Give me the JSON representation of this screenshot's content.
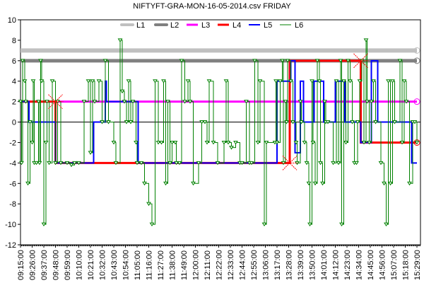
{
  "chart_data": {
    "type": "line",
    "title": "NIFTYFT-GRA-MON-16-05-2014.csv  FRIDAY",
    "xlabel": "",
    "ylabel": "",
    "x_unit": "minutes since 09:15",
    "xlim": [
      0,
      377
    ],
    "ylim": [
      -12,
      10
    ],
    "yticks": [
      -12,
      -10,
      -8,
      -6,
      -4,
      -2,
      0,
      2,
      4,
      6,
      8,
      10
    ],
    "xtick_labels": [
      "09:15:00",
      "09:26:00",
      "09:37:00",
      "09:48:00",
      "09:59:00",
      "10:10:00",
      "10:21:00",
      "10:32:00",
      "10:43:00",
      "10:54:00",
      "11:05:00",
      "11:16:00",
      "11:27:00",
      "11:38:00",
      "11:49:00",
      "12:00:00",
      "12:11:00",
      "12:22:00",
      "12:33:00",
      "12:44:00",
      "12:55:00",
      "13:06:00",
      "13:17:00",
      "13:28:00",
      "13:39:00",
      "13:50:00",
      "14:01:00",
      "14:12:00",
      "14:23:00",
      "14:34:00",
      "14:45:00",
      "14:56:00",
      "15:07:00",
      "15:18:00",
      "15:29:00"
    ],
    "xtick_step_minutes": 11,
    "legend_position": "top",
    "series": [
      {
        "name": "L1",
        "color": "#c0c0c0",
        "style": "step",
        "points": [
          [
            0,
            7
          ],
          [
            374,
            7
          ]
        ]
      },
      {
        "name": "L2",
        "color": "#808080",
        "style": "step",
        "points": [
          [
            0,
            6
          ],
          [
            374,
            6
          ]
        ]
      },
      {
        "name": "L3",
        "color": "#ff00ff",
        "style": "step",
        "points": [
          [
            0,
            2
          ],
          [
            374,
            2
          ]
        ]
      },
      {
        "name": "L4",
        "color": "#ff0000",
        "style": "step",
        "points": [
          [
            0,
            2
          ],
          [
            33,
            -4
          ],
          [
            254,
            6
          ],
          [
            321,
            -2
          ],
          [
            374,
            -2
          ]
        ]
      },
      {
        "name": "L5",
        "color": "#0000ff",
        "style": "step",
        "points": [
          [
            0,
            2
          ],
          [
            8,
            0
          ],
          [
            33,
            -4
          ],
          [
            69,
            0
          ],
          [
            80,
            4
          ],
          [
            81,
            2
          ],
          [
            111,
            -4
          ],
          [
            242,
            4
          ],
          [
            255,
            6
          ],
          [
            259,
            -3
          ],
          [
            264,
            4
          ],
          [
            267,
            0
          ],
          [
            277,
            4
          ],
          [
            286,
            0
          ],
          [
            297,
            4
          ],
          [
            306,
            0
          ],
          [
            321,
            -2
          ],
          [
            331,
            6
          ],
          [
            337,
            0
          ],
          [
            369,
            -4
          ],
          [
            374,
            -4
          ]
        ]
      },
      {
        "name": "L6",
        "color": "#008000",
        "style": "step",
        "points": [
          [
            0,
            2
          ],
          [
            1,
            -4
          ],
          [
            2,
            6
          ],
          [
            4,
            4
          ],
          [
            5,
            2
          ],
          [
            7,
            -6
          ],
          [
            9,
            0
          ],
          [
            11,
            -2
          ],
          [
            12,
            4
          ],
          [
            13,
            -4
          ],
          [
            15,
            -4
          ],
          [
            17,
            2
          ],
          [
            18,
            -4
          ],
          [
            19,
            6
          ],
          [
            20,
            4
          ],
          [
            22,
            -10
          ],
          [
            24,
            -2
          ],
          [
            25,
            2
          ],
          [
            27,
            -4
          ],
          [
            30,
            4
          ],
          [
            33,
            -4
          ],
          [
            35,
            2
          ],
          [
            38,
            -4
          ],
          [
            44,
            -4
          ],
          [
            48,
            -4.2
          ],
          [
            51,
            -4
          ],
          [
            55,
            -4
          ],
          [
            60,
            2
          ],
          [
            64,
            4
          ],
          [
            66,
            -3
          ],
          [
            68,
            4
          ],
          [
            70,
            2
          ],
          [
            74,
            4
          ],
          [
            77,
            0
          ],
          [
            80,
            6
          ],
          [
            83,
            0
          ],
          [
            88,
            -2
          ],
          [
            90,
            -4
          ],
          [
            94,
            8
          ],
          [
            96,
            3
          ],
          [
            98,
            2
          ],
          [
            100,
            0
          ],
          [
            102,
            4
          ],
          [
            104,
            0
          ],
          [
            106,
            2
          ],
          [
            109,
            -2
          ],
          [
            110,
            -4
          ],
          [
            114,
            -4
          ],
          [
            117,
            -6
          ],
          [
            121,
            -8
          ],
          [
            124,
            -10
          ],
          [
            127,
            4
          ],
          [
            130,
            -2
          ],
          [
            133,
            -2
          ],
          [
            135,
            4
          ],
          [
            137,
            -6
          ],
          [
            139,
            2
          ],
          [
            141,
            -4
          ],
          [
            143,
            -2
          ],
          [
            146,
            -2
          ],
          [
            147,
            -4
          ],
          [
            150,
            -4
          ],
          [
            152,
            6
          ],
          [
            155,
            2
          ],
          [
            158,
            4
          ],
          [
            160,
            2
          ],
          [
            163,
            -6
          ],
          [
            168,
            -4
          ],
          [
            171,
            0
          ],
          [
            174,
            0
          ],
          [
            176,
            -2
          ],
          [
            178,
            4
          ],
          [
            182,
            -2
          ],
          [
            186,
            -4
          ],
          [
            192,
            -2
          ],
          [
            194,
            4
          ],
          [
            196,
            -2
          ],
          [
            199,
            -2.5
          ],
          [
            203,
            -2
          ],
          [
            207,
            -4
          ],
          [
            209,
            -4
          ],
          [
            213,
            2
          ],
          [
            216,
            -4
          ],
          [
            218,
            -4
          ],
          [
            221,
            6
          ],
          [
            224,
            -2
          ],
          [
            226,
            4
          ],
          [
            230,
            -10
          ],
          [
            232,
            -2
          ],
          [
            240,
            -2
          ],
          [
            241,
            4
          ],
          [
            242,
            -2
          ],
          [
            245,
            4
          ],
          [
            247,
            6
          ],
          [
            248,
            -4
          ],
          [
            250,
            2
          ],
          [
            251,
            0
          ],
          [
            252,
            6
          ],
          [
            255,
            4
          ],
          [
            257,
            0
          ],
          [
            260,
            -2
          ],
          [
            261,
            -4
          ],
          [
            264,
            2
          ],
          [
            265,
            0
          ],
          [
            268,
            -2
          ],
          [
            270,
            -4
          ],
          [
            272,
            -6
          ],
          [
            273,
            -10
          ],
          [
            275,
            4
          ],
          [
            276,
            -2
          ],
          [
            278,
            -6
          ],
          [
            280,
            6
          ],
          [
            282,
            4
          ],
          [
            283,
            -4
          ],
          [
            285,
            -6
          ],
          [
            287,
            2
          ],
          [
            288,
            0
          ],
          [
            290,
            0
          ],
          [
            295,
            -4
          ],
          [
            298,
            4
          ],
          [
            300,
            -4
          ],
          [
            302,
            6
          ],
          [
            303,
            -10
          ],
          [
            305,
            4
          ],
          [
            307,
            -2
          ],
          [
            309,
            6
          ],
          [
            311,
            4
          ],
          [
            313,
            0
          ],
          [
            315,
            -4
          ],
          [
            317,
            -4
          ],
          [
            318,
            0
          ],
          [
            320,
            4
          ],
          [
            322,
            6
          ],
          [
            324,
            -2
          ],
          [
            326,
            8
          ],
          [
            327,
            2
          ],
          [
            329,
            -2
          ],
          [
            331,
            2
          ],
          [
            333,
            4
          ],
          [
            335,
            0
          ],
          [
            340,
            -4
          ],
          [
            343,
            -6
          ],
          [
            345,
            -10
          ],
          [
            347,
            4
          ],
          [
            349,
            -6
          ],
          [
            351,
            4
          ],
          [
            353,
            0
          ],
          [
            358,
            6
          ],
          [
            360,
            -2
          ],
          [
            362,
            4
          ],
          [
            364,
            2
          ],
          [
            367,
            -6
          ],
          [
            370,
            0
          ],
          [
            372,
            0
          ],
          [
            374,
            -2
          ]
        ]
      }
    ],
    "annotations": [
      {
        "type": "cross-marker",
        "series": "L4",
        "x": 33,
        "y": 2
      },
      {
        "type": "cross-marker",
        "series": "L4",
        "x": 254,
        "y": -4
      },
      {
        "type": "cross-marker",
        "series": "L4",
        "x": 321,
        "y": 6
      }
    ]
  }
}
